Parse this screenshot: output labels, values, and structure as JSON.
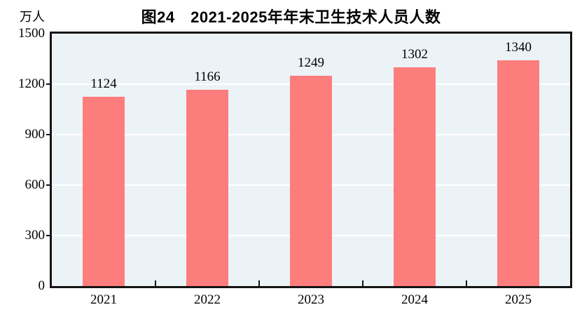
{
  "chart_data": {
    "type": "bar",
    "title": "图24　2021-2025年年末卫生技术人员人数",
    "unit_label": "万人",
    "categories": [
      "2021",
      "2022",
      "2023",
      "2024",
      "2025"
    ],
    "values": [
      1124,
      1166,
      1249,
      1302,
      1340
    ],
    "value_labels_shown": true,
    "ylim": [
      0,
      1500
    ],
    "yticks": [
      0,
      300,
      600,
      900,
      1200,
      1500
    ],
    "xlabel": "",
    "ylabel": "万人",
    "grid": "horizontal-white-behind-bars",
    "legend": "none",
    "bar_slot_fraction": 0.4,
    "colors": {
      "bar": "#FD7D7D",
      "plot_background": "#ECF3F7",
      "gridline": "#FFFFFF",
      "axis_border": "#141414",
      "text": "#000000",
      "page_background": "#FFFFFF"
    }
  }
}
